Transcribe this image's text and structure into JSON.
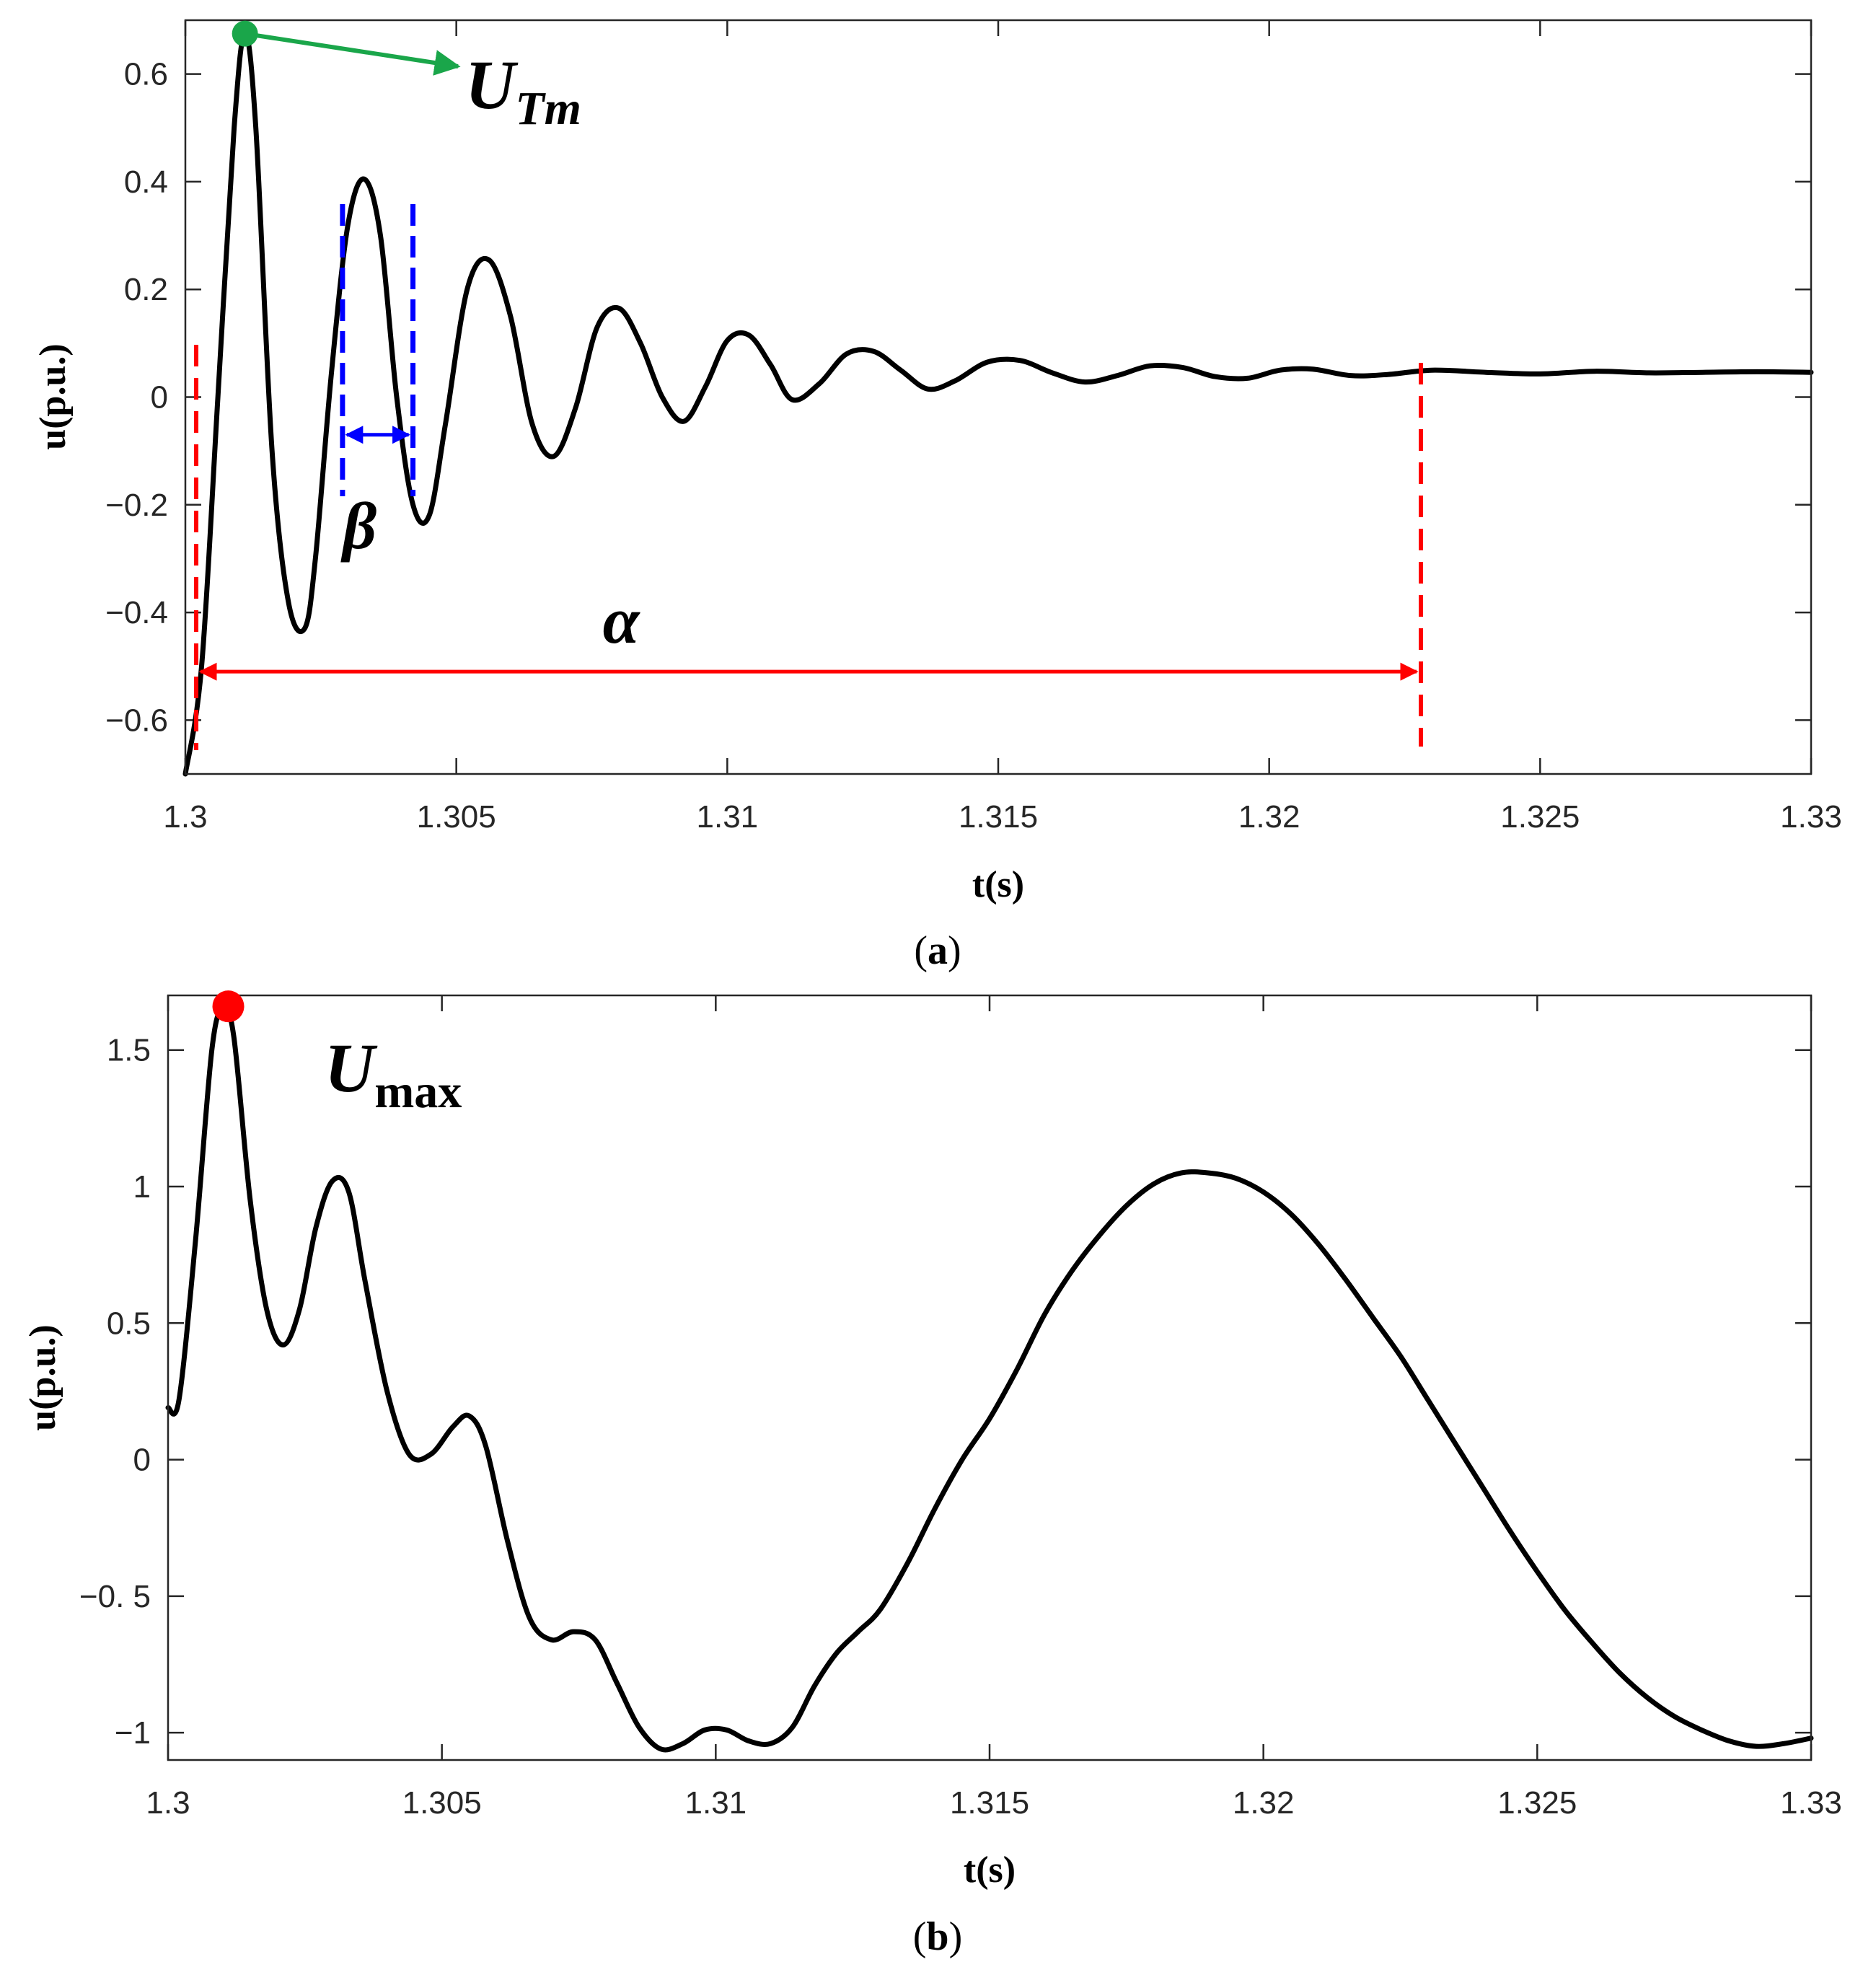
{
  "chart_data": [
    {
      "id": "a",
      "type": "line",
      "caption": "a",
      "xlabel": "t(s)",
      "ylabel": "u(p.u.)",
      "xlim": [
        1.3,
        1.33
      ],
      "ylim": [
        -0.7,
        0.7
      ],
      "xticks": [
        1.3,
        1.305,
        1.31,
        1.315,
        1.32,
        1.325,
        1.33
      ],
      "xtick_labels": [
        "1.3",
        "1.305",
        "1.31",
        "1.315",
        "1.32",
        "1.325",
        "1.33"
      ],
      "yticks": [
        0.6,
        0.4,
        0.2,
        0,
        -0.2,
        -0.4,
        -0.6
      ],
      "ytick_labels": [
        "0.6",
        "0.4",
        "0.2",
        "0",
        "−0.2",
        "−0.4",
        "−0.6"
      ],
      "series": [
        {
          "name": "u",
          "color": "#000000",
          "x": [
            1.3,
            1.3003,
            1.3006,
            1.3009,
            1.3011,
            1.3013,
            1.3016,
            1.3019,
            1.3022,
            1.3024,
            1.3027,
            1.303,
            1.3033,
            1.3036,
            1.3039,
            1.3042,
            1.3045,
            1.3048,
            1.3052,
            1.3056,
            1.306,
            1.3064,
            1.3068,
            1.3072,
            1.3076,
            1.308,
            1.3084,
            1.3088,
            1.3092,
            1.3096,
            1.31,
            1.3104,
            1.3108,
            1.3112,
            1.3117,
            1.3122,
            1.3127,
            1.3132,
            1.3137,
            1.3142,
            1.3148,
            1.3154,
            1.316,
            1.3166,
            1.3172,
            1.3178,
            1.3184,
            1.319,
            1.3196,
            1.3202,
            1.3208,
            1.3215,
            1.3222,
            1.323,
            1.324,
            1.325,
            1.326,
            1.327,
            1.328,
            1.329,
            1.33
          ],
          "y": [
            -0.7,
            -0.5,
            0.0,
            0.5,
            0.675,
            0.5,
            -0.1,
            -0.38,
            -0.43,
            -0.3,
            0.05,
            0.32,
            0.405,
            0.3,
            0.0,
            -0.2,
            -0.22,
            -0.05,
            0.2,
            0.255,
            0.15,
            -0.05,
            -0.11,
            -0.02,
            0.13,
            0.165,
            0.1,
            0.0,
            -0.045,
            0.02,
            0.105,
            0.115,
            0.06,
            -0.005,
            0.025,
            0.08,
            0.085,
            0.05,
            0.015,
            0.03,
            0.065,
            0.068,
            0.045,
            0.028,
            0.04,
            0.058,
            0.055,
            0.038,
            0.035,
            0.05,
            0.052,
            0.04,
            0.042,
            0.05,
            0.046,
            0.043,
            0.048,
            0.045,
            0.046,
            0.047,
            0.046
          ]
        }
      ],
      "annotations": {
        "peak_point": {
          "x": 1.3011,
          "y": 0.675,
          "color": "#1aa64a"
        },
        "peak_label": "U",
        "peak_label_sub": "Tm",
        "alpha_label": "α",
        "alpha_range": [
          1.3002,
          1.3228
        ],
        "alpha_y": -0.51,
        "alpha_color": "#ff0000",
        "beta_label": "β",
        "beta_range": [
          1.3029,
          1.3042
        ],
        "beta_y": -0.07,
        "beta_color": "#0000ff"
      }
    },
    {
      "id": "b",
      "type": "line",
      "caption": "b",
      "xlabel": "t(s)",
      "ylabel": "u(p.u.)",
      "xlim": [
        1.3,
        1.33
      ],
      "ylim": [
        -1.1,
        1.7
      ],
      "xticks": [
        1.3,
        1.305,
        1.31,
        1.315,
        1.32,
        1.325,
        1.33
      ],
      "xtick_labels": [
        "1.3",
        "1.305",
        "1.31",
        "1.315",
        "1.32",
        "1.325",
        "1.33"
      ],
      "yticks": [
        1.5,
        1,
        0.5,
        0,
        -0.5,
        -1
      ],
      "ytick_labels": [
        "1.5",
        "1",
        "0.5",
        "0",
        "−0. 5",
        "−1"
      ],
      "series": [
        {
          "name": "u",
          "color": "#000000",
          "x": [
            1.3,
            1.3002,
            1.3005,
            1.3008,
            1.301,
            1.3012,
            1.3015,
            1.3018,
            1.3021,
            1.3024,
            1.3027,
            1.303,
            1.3033,
            1.3036,
            1.304,
            1.3044,
            1.3048,
            1.3052,
            1.3055,
            1.3058,
            1.3062,
            1.3066,
            1.307,
            1.3074,
            1.3078,
            1.3082,
            1.3086,
            1.309,
            1.3094,
            1.3098,
            1.3102,
            1.3106,
            1.311,
            1.3114,
            1.3118,
            1.3122,
            1.3126,
            1.313,
            1.3135,
            1.314,
            1.3145,
            1.315,
            1.3155,
            1.316,
            1.3165,
            1.317,
            1.3175,
            1.318,
            1.3185,
            1.319,
            1.3195,
            1.32,
            1.3205,
            1.321,
            1.3215,
            1.322,
            1.3225,
            1.323,
            1.3235,
            1.324,
            1.3245,
            1.325,
            1.3255,
            1.326,
            1.3265,
            1.327,
            1.3275,
            1.328,
            1.3285,
            1.329,
            1.3295,
            1.33
          ],
          "y": [
            0.19,
            0.22,
            0.8,
            1.5,
            1.65,
            1.55,
            0.95,
            0.55,
            0.42,
            0.55,
            0.85,
            1.02,
            0.98,
            0.65,
            0.25,
            0.02,
            0.02,
            0.12,
            0.16,
            0.05,
            -0.3,
            -0.58,
            -0.66,
            -0.63,
            -0.66,
            -0.82,
            -0.98,
            -1.06,
            -1.04,
            -0.99,
            -0.99,
            -1.03,
            -1.04,
            -0.98,
            -0.83,
            -0.71,
            -0.63,
            -0.55,
            -0.38,
            -0.18,
            0.0,
            0.15,
            0.33,
            0.53,
            0.69,
            0.82,
            0.93,
            1.01,
            1.05,
            1.05,
            1.03,
            0.98,
            0.9,
            0.79,
            0.66,
            0.52,
            0.38,
            0.22,
            0.06,
            -0.1,
            -0.26,
            -0.41,
            -0.55,
            -0.67,
            -0.78,
            -0.87,
            -0.94,
            -0.99,
            -1.03,
            -1.05,
            -1.04,
            -1.02
          ]
        }
      ],
      "annotations": {
        "peak_point": {
          "x": 1.3011,
          "y": 1.66,
          "color": "#ff0000"
        },
        "peak_label": "U",
        "peak_label_sub": "max"
      }
    }
  ]
}
